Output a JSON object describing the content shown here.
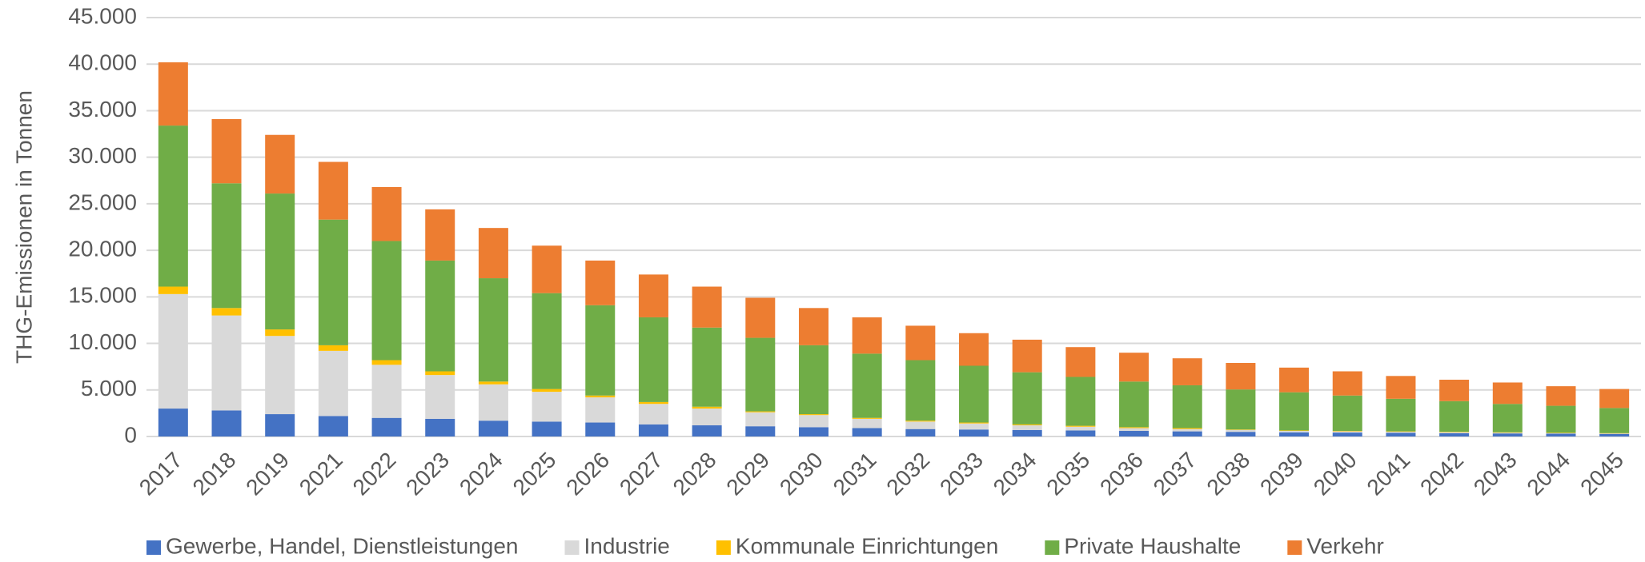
{
  "chart_data": {
    "type": "stacked_bar",
    "ylabel": "THG-Emissionen in Tonnen",
    "categories": [
      "2017",
      "2018",
      "2019",
      "2021",
      "2022",
      "2023",
      "2024",
      "2025",
      "2026",
      "2027",
      "2028",
      "2029",
      "2030",
      "2031",
      "2032",
      "2033",
      "2034",
      "2035",
      "2036",
      "2037",
      "2038",
      "2039",
      "2040",
      "2041",
      "2042",
      "2043",
      "2044",
      "2045"
    ],
    "series": [
      {
        "name": "Gewerbe, Handel, Dienstleistungen",
        "color": "#4472c4",
        "values": [
          3000,
          2800,
          2400,
          2200,
          2000,
          1900,
          1700,
          1600,
          1500,
          1300,
          1200,
          1100,
          1000,
          900,
          800,
          750,
          700,
          650,
          600,
          550,
          500,
          450,
          420,
          400,
          350,
          330,
          300,
          280
        ]
      },
      {
        "name": "Industrie",
        "color": "#d9d9d9",
        "values": [
          12300,
          10200,
          8400,
          7000,
          5700,
          4700,
          3900,
          3200,
          2700,
          2200,
          1800,
          1500,
          1300,
          1000,
          800,
          650,
          500,
          400,
          300,
          250,
          200,
          150,
          130,
          100,
          100,
          70,
          50,
          40
        ]
      },
      {
        "name": "Kommunale Einrichtungen",
        "color": "#ffc000",
        "values": [
          800,
          800,
          700,
          600,
          500,
          400,
          300,
          300,
          200,
          200,
          200,
          100,
          100,
          100,
          100,
          100,
          100,
          100,
          100,
          100,
          50,
          50,
          50,
          50,
          50,
          50,
          50,
          40
        ]
      },
      {
        "name": "Private Haushalte",
        "color": "#70ad47",
        "values": [
          17300,
          13400,
          14600,
          13500,
          12800,
          11900,
          11100,
          10300,
          9700,
          9100,
          8500,
          7900,
          7400,
          6900,
          6500,
          6100,
          5600,
          5250,
          4900,
          4600,
          4300,
          4100,
          3800,
          3500,
          3300,
          3050,
          2900,
          2700
        ]
      },
      {
        "name": "Verkehr",
        "color": "#ed7d31",
        "values": [
          6800,
          6900,
          6300,
          6200,
          5800,
          5500,
          5400,
          5100,
          4800,
          4600,
          4400,
          4300,
          4000,
          3900,
          3700,
          3500,
          3500,
          3200,
          3100,
          2900,
          2850,
          2650,
          2600,
          2450,
          2300,
          2300,
          2100,
          2040
        ]
      }
    ],
    "ylim": [
      0,
      45000
    ],
    "yticks": [
      0,
      {
        "value": 5000,
        "label": "5.000"
      },
      {
        "value": 10000,
        "label": "10.000"
      },
      {
        "value": 15000,
        "label": "15.000"
      },
      {
        "value": 20000,
        "label": "20.000"
      },
      {
        "value": 25000,
        "label": "25.000"
      },
      {
        "value": 30000,
        "label": "30.000"
      },
      {
        "value": 35000,
        "label": "35.000"
      },
      {
        "value": 40000,
        "label": "40.000"
      },
      {
        "value": 45000,
        "label": "45.000"
      }
    ],
    "grid": true,
    "legend": "bottom"
  }
}
